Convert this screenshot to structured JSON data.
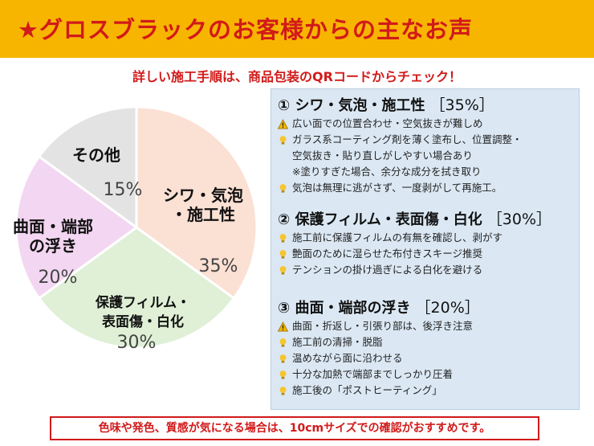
{
  "header": {
    "title": "★グロスブラックのお客様からの主なお声",
    "subtitle": "詳しい施工手順は、商品包装のQRコードからチェック！"
  },
  "chart_data": {
    "type": "pie",
    "slices": [
      {
        "label_lines": [
          "シワ・気泡",
          "・施工性"
        ],
        "value": 35,
        "value_label": "35%",
        "color": "#fbe0d4"
      },
      {
        "label_lines": [
          "保護フィルム・",
          "表面傷・白化"
        ],
        "value": 30,
        "value_label": "30%",
        "color": "#dff0d6"
      },
      {
        "label_lines": [
          "曲面・端部",
          "の浮き"
        ],
        "value": 20,
        "value_label": "20%",
        "color": "#f3d6f1"
      },
      {
        "label_lines": [
          "その他"
        ],
        "value": 15,
        "value_label": "15%",
        "color": "#e3e3e3"
      }
    ]
  },
  "panel": {
    "sections": [
      {
        "heading": "① シワ・気泡・施工性",
        "percent": "［35%］",
        "items": [
          {
            "icon": "warning-icon",
            "text": "広い面での位置合わせ・空気抜きが難しめ"
          },
          {
            "icon": "lightbulb-icon",
            "text": "ガラス系コーティング剤を薄く塗布し、位置調整・"
          },
          {
            "icon": "",
            "text": "空気抜き・貼り直しがしやすい場合あり"
          },
          {
            "icon": "",
            "text": "※塗りすぎた場合、余分な成分を拭き取り"
          },
          {
            "icon": "lightbulb-icon",
            "text": "気泡は無理に逃がさず、一度剥がして再施工。"
          }
        ]
      },
      {
        "heading": "② 保護フィルム・表面傷・白化",
        "percent": "［30%］",
        "items": [
          {
            "icon": "lightbulb-icon",
            "text": "施工前に保護フィルムの有無を確認し、剥がす"
          },
          {
            "icon": "lightbulb-icon",
            "text": "艶面のために湿らせた布付きスキージ推奨"
          },
          {
            "icon": "lightbulb-icon",
            "text": "テンションの掛け過ぎによる白化を避ける"
          }
        ]
      },
      {
        "heading": "③ 曲面・端部の浮き",
        "percent": "［20%］",
        "items": [
          {
            "icon": "warning-icon",
            "text": "曲面・折返し・引張り部は、後浮き注意"
          },
          {
            "icon": "lightbulb-icon",
            "text": "施工前の清掃・脱脂"
          },
          {
            "icon": "lightbulb-icon",
            "text": "温めながら面に沿わせる"
          },
          {
            "icon": "lightbulb-icon",
            "text": "十分な加熱で端部までしっかり圧着"
          },
          {
            "icon": "lightbulb-icon",
            "text": "施工後の「ポストヒーティング」"
          }
        ]
      }
    ]
  },
  "footer": {
    "note": "色味や発色、質感が気になる場合は、10cmサイズでの確認がおすすめです。"
  },
  "colors": {
    "banner": "#f7b500",
    "accent_red": "#d11a1a",
    "panel_bg": "#dbe8f4"
  }
}
